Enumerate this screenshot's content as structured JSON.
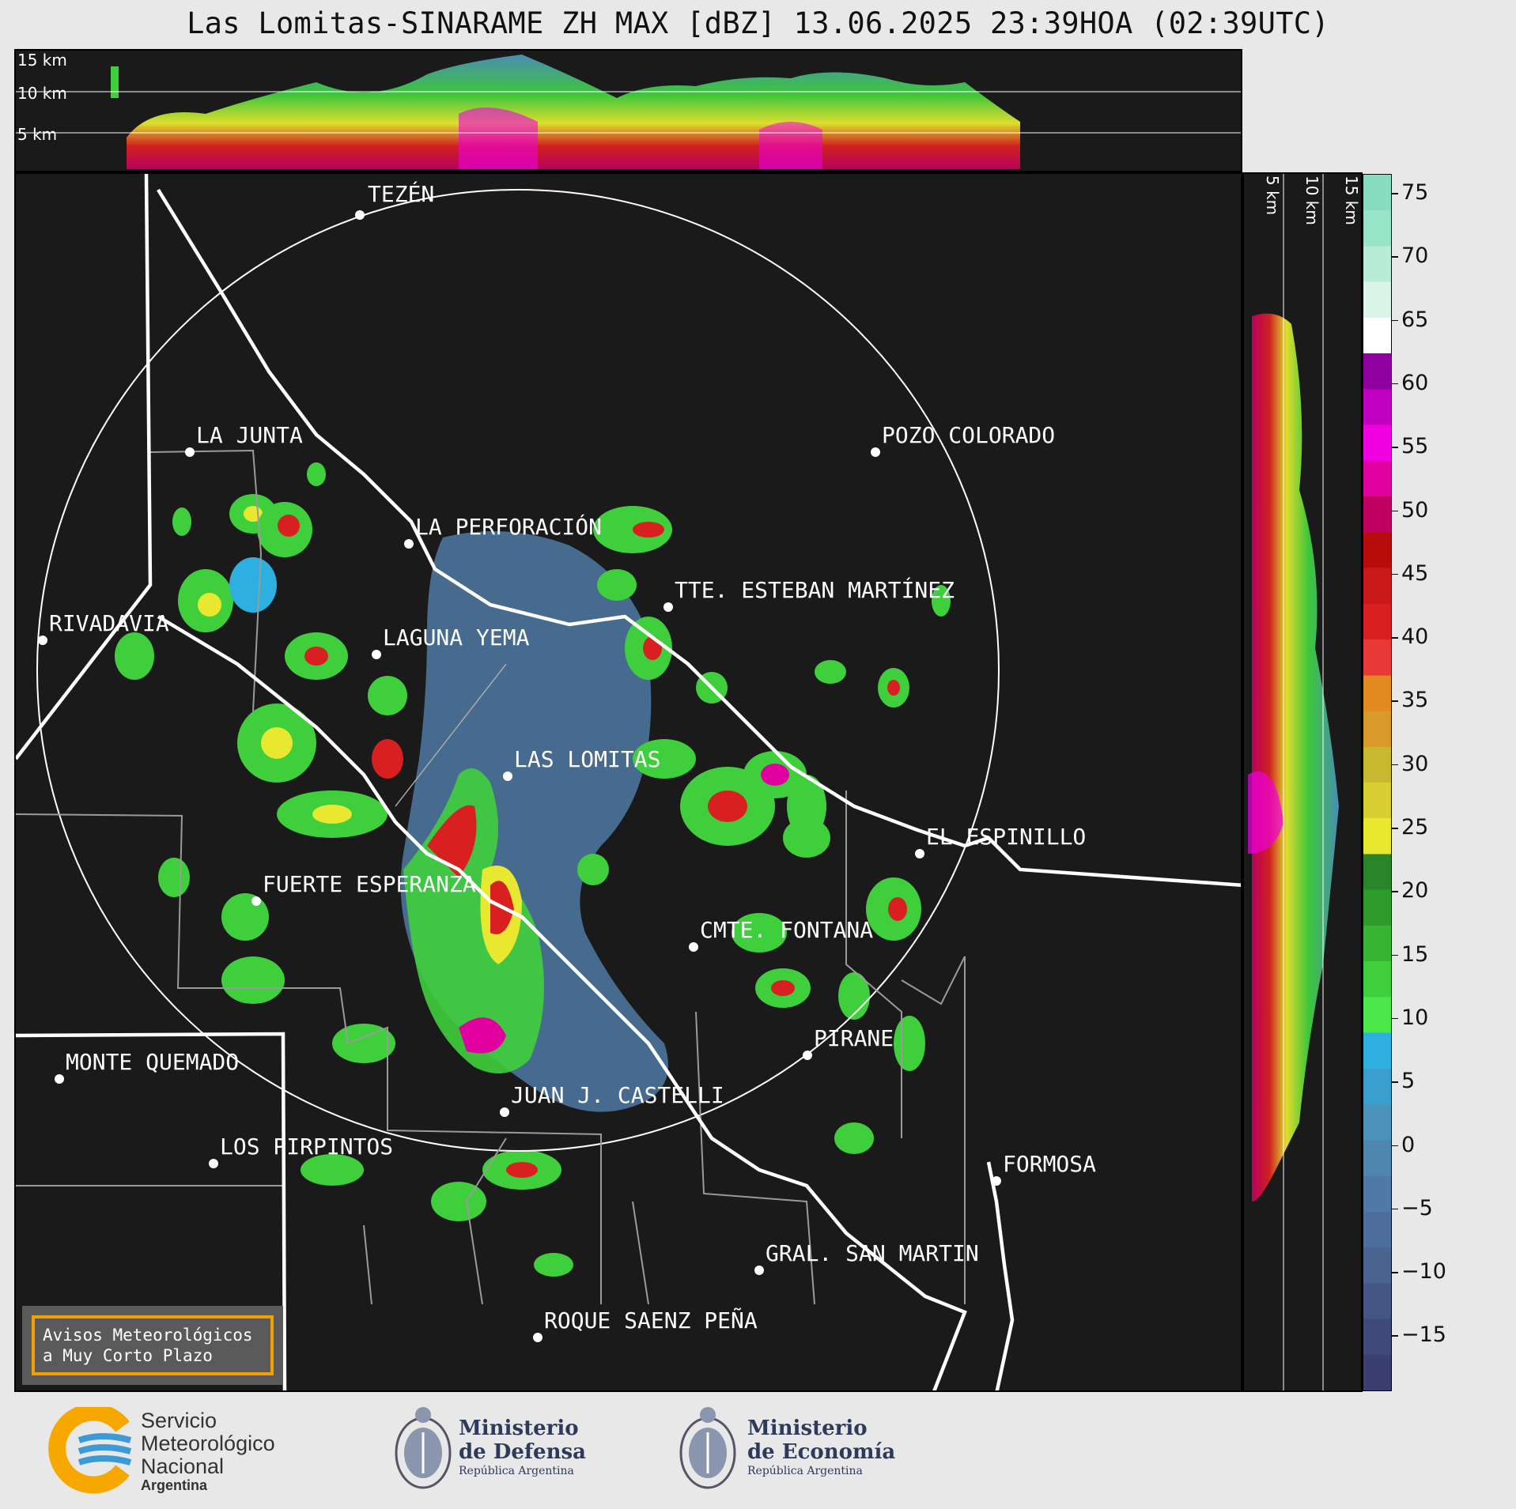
{
  "title": "Las Lomitas-SINARAME ZH MAX [dBZ] 13.06.2025 23:39HOA (02:39UTC)",
  "top_panel": {
    "height_labels": [
      "15 km",
      "10 km",
      "5 km"
    ]
  },
  "side_panel": {
    "height_labels": [
      "5 km",
      "10 km",
      "15 km"
    ]
  },
  "colorbar": {
    "unit": "dBZ",
    "ticks": [
      "75",
      "70",
      "65",
      "60",
      "55",
      "50",
      "45",
      "40",
      "35",
      "30",
      "25",
      "20",
      "15",
      "10",
      "5",
      "0",
      "−5",
      "−10",
      "−15"
    ],
    "colors": [
      "#3a3f6e",
      "#3f4a7a",
      "#445686",
      "#4a6391",
      "#4e6e9b",
      "#4f7aa5",
      "#4f86b0",
      "#4c93bb",
      "#3a9fcf",
      "#2db0e0",
      "#4ce84a",
      "#3fcf3c",
      "#35b532",
      "#2e9c2b",
      "#2a852a",
      "#e8e830",
      "#d8d030",
      "#c8b830",
      "#d89a28",
      "#e08a20",
      "#e83838",
      "#d82020",
      "#c81818",
      "#b80c0c",
      "#c00060",
      "#e000a0",
      "#f000e0",
      "#c000c0",
      "#9000a0",
      "#ffffff",
      "#d8f5e8",
      "#b8ecd8",
      "#98e4c8",
      "#88dcc0"
    ]
  },
  "cities": [
    {
      "name": "TEZÉN"
    },
    {
      "name": "LA JUNTA"
    },
    {
      "name": "POZO COLORADO"
    },
    {
      "name": "LA PERFORACIÓN"
    },
    {
      "name": "RIVADAVIA"
    },
    {
      "name": "TTE. ESTEBAN MARTÍNEZ"
    },
    {
      "name": "LAGUNA YEMA"
    },
    {
      "name": "LAS LOMITAS"
    },
    {
      "name": "EL ESPINILLO"
    },
    {
      "name": "FUERTE ESPERANZA"
    },
    {
      "name": "CMTE. FONTANA"
    },
    {
      "name": "PIRANE"
    },
    {
      "name": "MONTE QUEMADO"
    },
    {
      "name": "JUAN J. CASTELLI"
    },
    {
      "name": "LOS PIRPINTOS"
    },
    {
      "name": "GRAL. SAN MARTIN"
    },
    {
      "name": "ROQUE SAENZ PEÑA"
    },
    {
      "name": "FORMOSA"
    }
  ],
  "avisos": {
    "line1": "Avisos Meteorológicos",
    "line2": "a Muy Corto Plazo"
  },
  "logos": {
    "smn": {
      "line1": "Servicio",
      "line2": "Meteorológico",
      "line3": "Nacional",
      "line4": "Argentina"
    },
    "defensa": {
      "line1": "Ministerio",
      "line2": "de Defensa",
      "line3": "República Argentina"
    },
    "economia": {
      "line1": "Ministerio",
      "line2": "de Economía",
      "line3": "República Argentina"
    }
  }
}
